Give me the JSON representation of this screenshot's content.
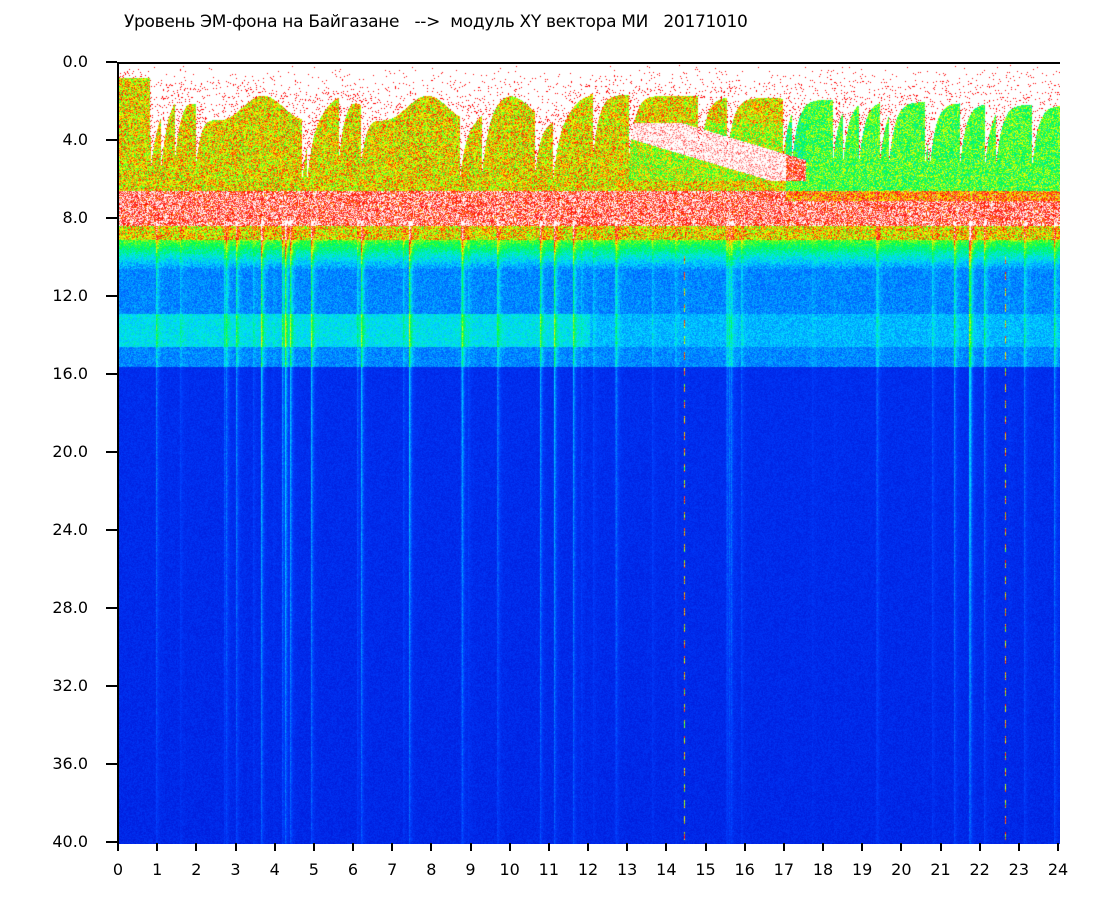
{
  "chart_data": {
    "type": "heatmap",
    "title": "Уровень ЭМ-фона на Байгазане   -->  модуль XY вектора МИ   20171010",
    "xlim": [
      0,
      24
    ],
    "ylim": [
      0,
      40
    ],
    "y_inverted": true,
    "xticks": [
      "0",
      "1",
      "2",
      "3",
      "4",
      "5",
      "6",
      "7",
      "8",
      "9",
      "10",
      "11",
      "12",
      "13",
      "14",
      "15",
      "16",
      "17",
      "18",
      "19",
      "20",
      "21",
      "22",
      "23",
      "24"
    ],
    "yticks": [
      "0.0",
      "4.0",
      "8.0",
      "12.0",
      "16.0",
      "20.0",
      "24.0",
      "28.0",
      "32.0",
      "36.0",
      "40.0"
    ],
    "grid": false,
    "colormap": [
      "#0000c0",
      "#0040ff",
      "#00e0ff",
      "#00ff40",
      "#ffff00",
      "#ff0000",
      "#ffffff"
    ],
    "features": {
      "strong_band_range": [
        2,
        9
      ],
      "secondary_band_range": [
        12,
        15
      ],
      "dashed_lines_x": [
        14.4,
        22.6
      ]
    }
  }
}
